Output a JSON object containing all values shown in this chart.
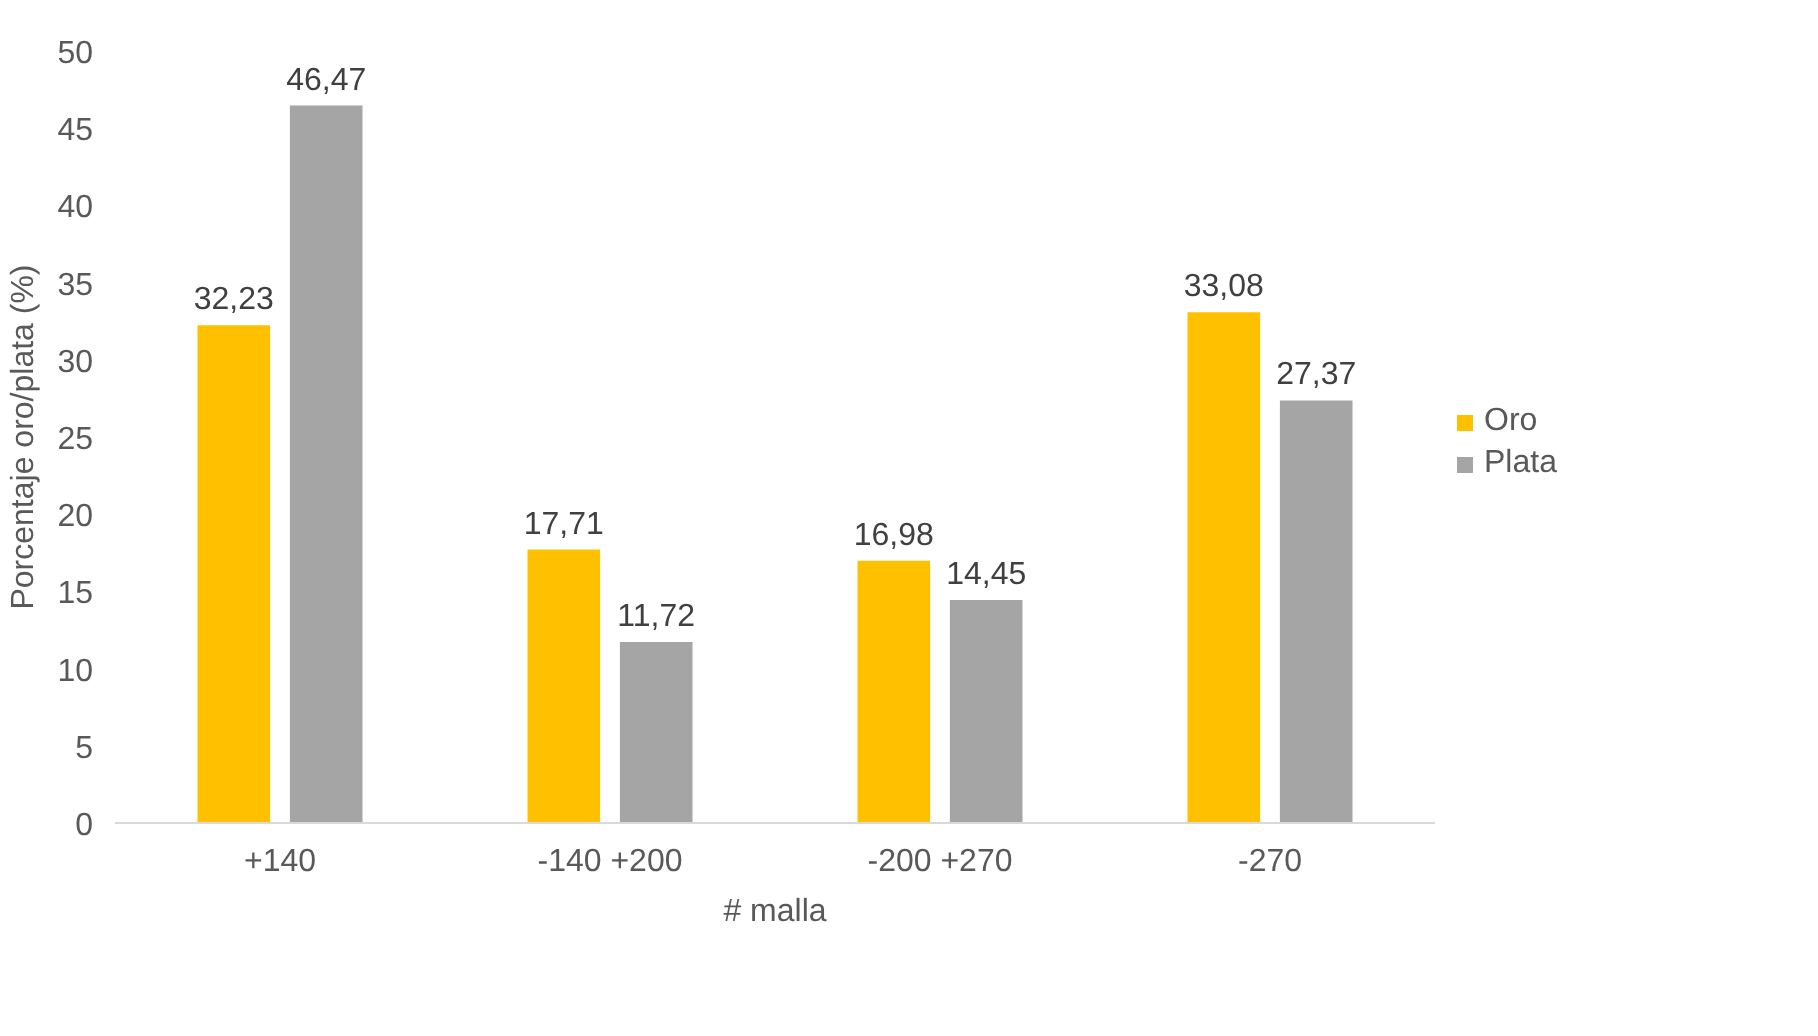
{
  "chart_data": {
    "type": "bar",
    "xlabel": "# malla",
    "ylabel": "Porcentaje oro/plata (%)",
    "categories": [
      "+140",
      "-140 +200",
      "-200 +270",
      "-270"
    ],
    "series": [
      {
        "name": "Oro",
        "color": "#ffc000",
        "values": [
          32.23,
          17.71,
          16.98,
          33.08
        ],
        "value_labels": [
          "32,23",
          "17,71",
          "16,98",
          "33,08"
        ]
      },
      {
        "name": "Plata",
        "color": "#a5a5a5",
        "values": [
          46.47,
          11.72,
          14.45,
          27.37
        ],
        "value_labels": [
          "46,47",
          "11,72",
          "14,45",
          "27,37"
        ]
      }
    ],
    "ylim": [
      0,
      50
    ],
    "yticks": [
      0,
      5,
      10,
      15,
      20,
      25,
      30,
      35,
      40,
      45,
      50
    ],
    "grid": false,
    "legend": "right"
  }
}
